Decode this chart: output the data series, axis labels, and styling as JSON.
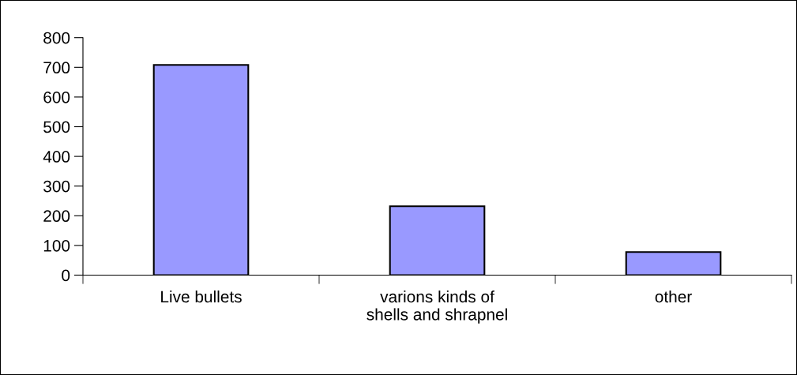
{
  "chart_data": {
    "type": "bar",
    "categories": [
      "Live bullets",
      "varions kinds of\nshells and shrapnel",
      "other"
    ],
    "values": [
      708,
      232,
      78
    ],
    "color": "#9999ff",
    "ylim": [
      0,
      800
    ],
    "yticks": [
      0,
      100,
      200,
      300,
      400,
      500,
      600,
      700,
      800
    ],
    "grid": false,
    "legend": false
  }
}
